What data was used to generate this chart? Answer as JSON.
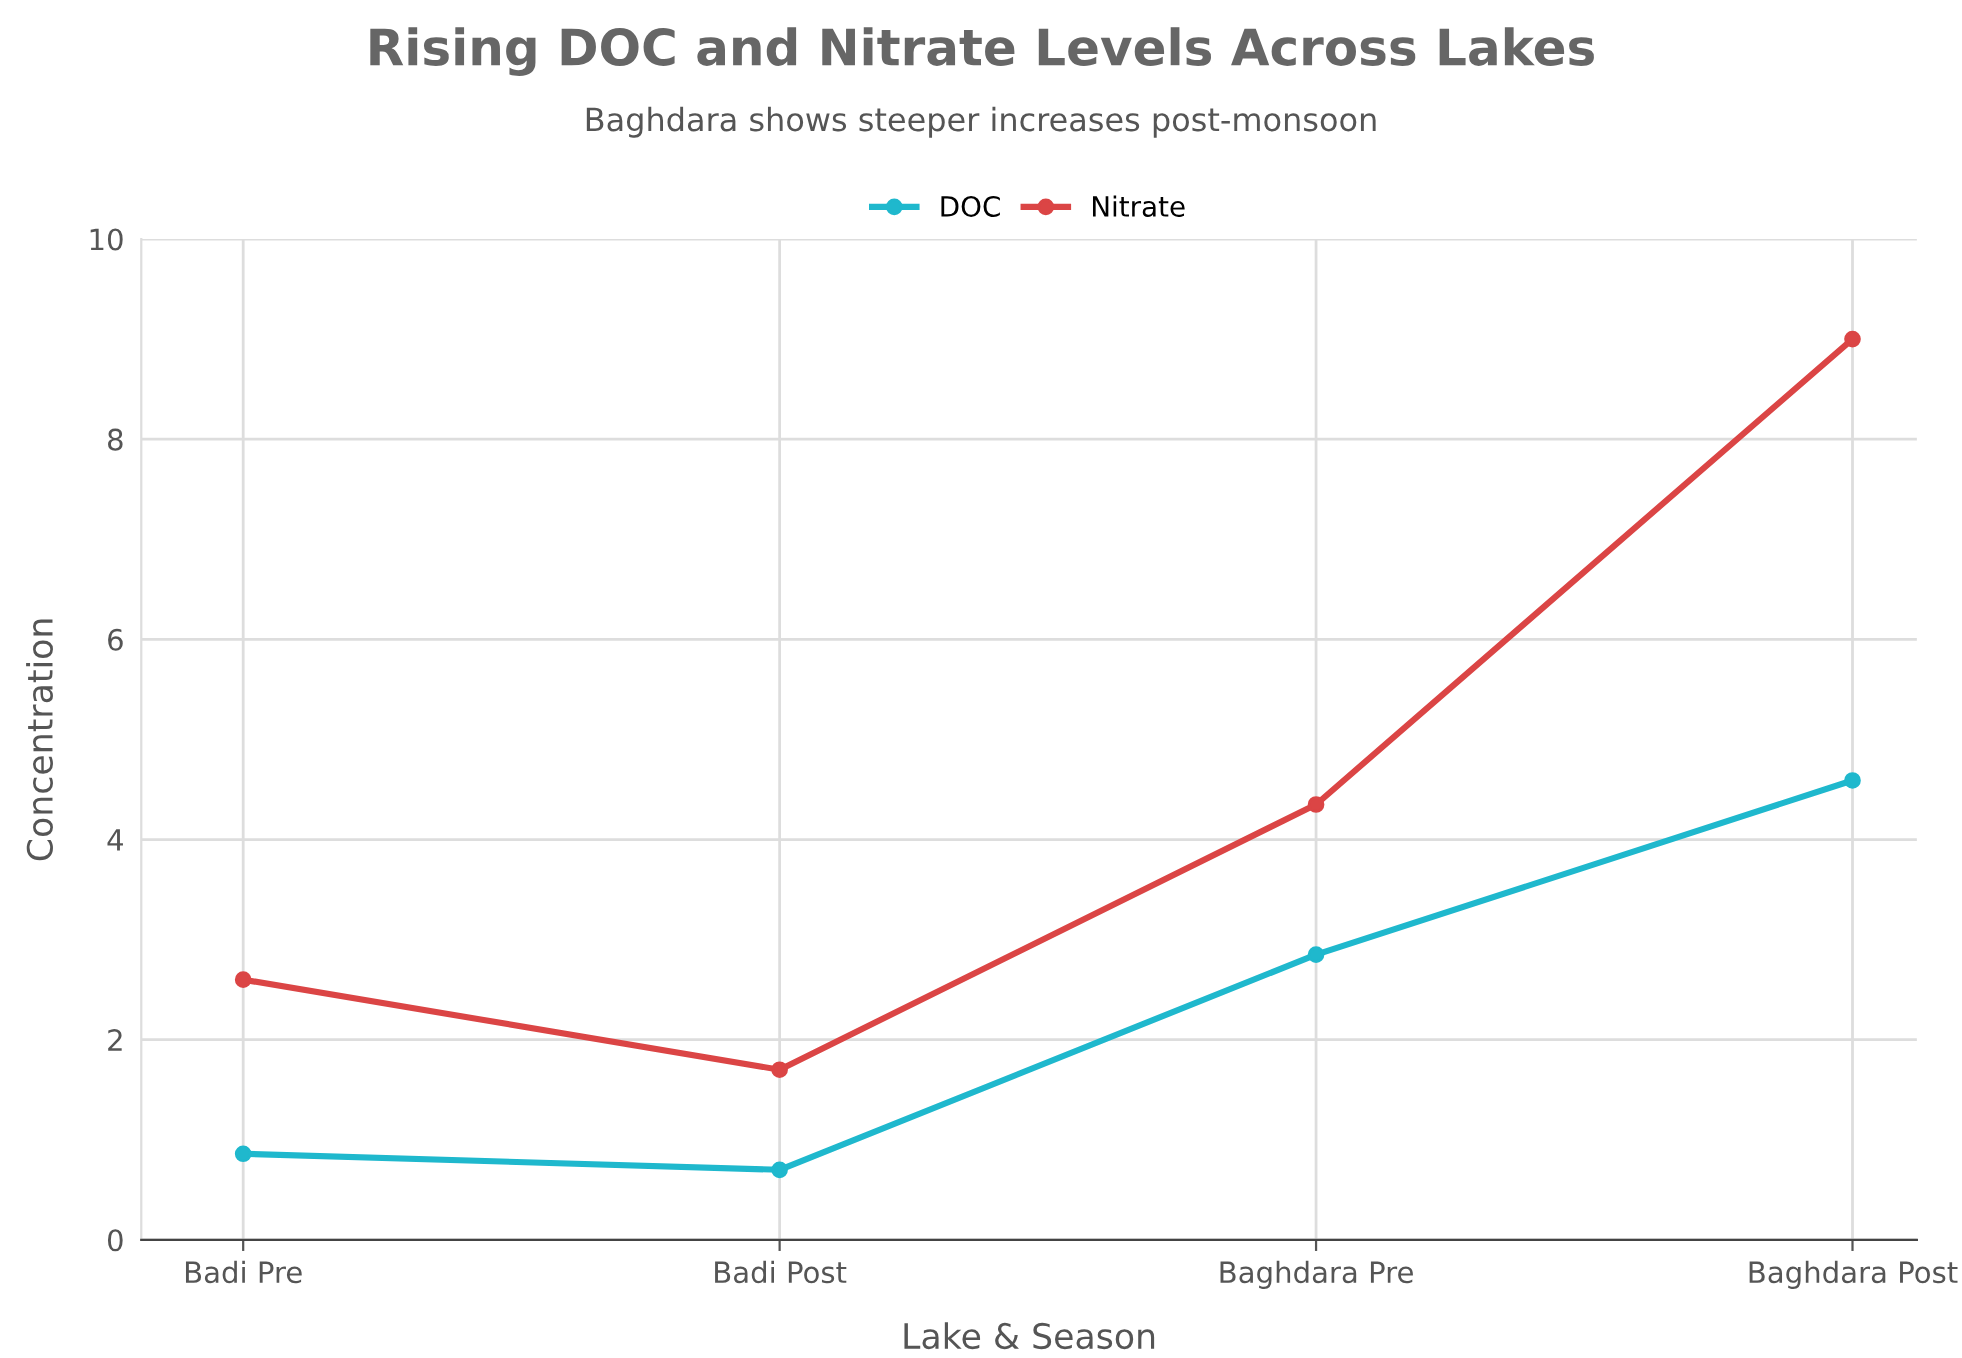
{
  "chart_data": {
    "type": "line",
    "title": "Rising DOC and Nitrate Levels Across Lakes",
    "subtitle": "Baghdara shows steeper increases post-monsoon",
    "xlabel": "Lake & Season",
    "ylabel": "Concentration",
    "categories": [
      "Badi Pre",
      "Badi Post",
      "Baghdara Pre",
      "Baghdara Post"
    ],
    "series": [
      {
        "name": "DOC",
        "color": "#1fb8cd",
        "values": [
          0.86,
          0.7,
          2.85,
          4.59
        ]
      },
      {
        "name": "Nitrate",
        "color": "#db4545",
        "values": [
          2.6,
          1.7,
          4.35,
          9.0
        ]
      }
    ],
    "ylim": [
      0,
      10
    ],
    "yticks": [
      0,
      2,
      4,
      6,
      8,
      10
    ],
    "grid": true,
    "legend": "top",
    "marker": "circle",
    "line_style": "solid"
  }
}
